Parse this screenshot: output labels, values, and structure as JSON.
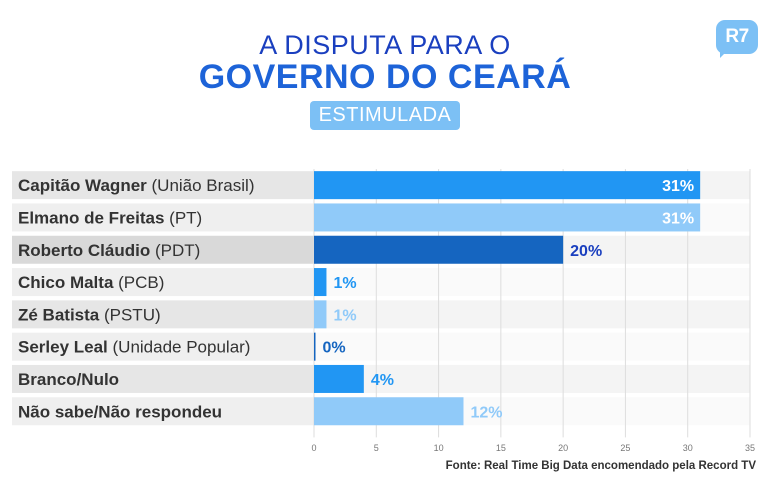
{
  "header": {
    "title_line1": "A DISPUTA PARA O",
    "title_line2": "GOVERNO DO CEARÁ",
    "subtitle": "ESTIMULADA",
    "logo": "R7"
  },
  "source": "Fonte: Real Time Big Data encomendado pela Record TV",
  "chart_data": {
    "type": "bar",
    "orientation": "horizontal",
    "categories": [
      {
        "name": "Capitão Wagner",
        "party": "(União Brasil)"
      },
      {
        "name": "Elmano de Freitas",
        "party": "(PT)"
      },
      {
        "name": "Roberto Cláudio",
        "party": "(PDT)"
      },
      {
        "name": "Chico Malta",
        "party": "(PCB)"
      },
      {
        "name": "Zé Batista",
        "party": "(PSTU)"
      },
      {
        "name": "Serley Leal",
        "party": "(Unidade Popular)"
      },
      {
        "name": "Branco/Nulo",
        "party": ""
      },
      {
        "name": "Não sabe/Não respondeu",
        "party": ""
      }
    ],
    "values": [
      31,
      31,
      20,
      1,
      1,
      0,
      4,
      12
    ],
    "labels": [
      "31%",
      "31%",
      "20%",
      "1%",
      "1%",
      "0%",
      "4%",
      "12%"
    ],
    "colors": [
      "#2196f3",
      "#90caf9",
      "#1565c0",
      "#2196f3",
      "#90caf9",
      "#1565c0",
      "#2196f3",
      "#90caf9"
    ],
    "label_colors": [
      "#ffffff",
      "#ffffff",
      "#1a3fbf",
      "#2196f3",
      "#90caf9",
      "#1565c0",
      "#2196f3",
      "#90caf9"
    ],
    "xlim": [
      0,
      35
    ],
    "xticks": [
      0,
      5,
      10,
      15,
      20,
      25,
      30,
      35
    ],
    "grid": true,
    "legend": "none"
  }
}
